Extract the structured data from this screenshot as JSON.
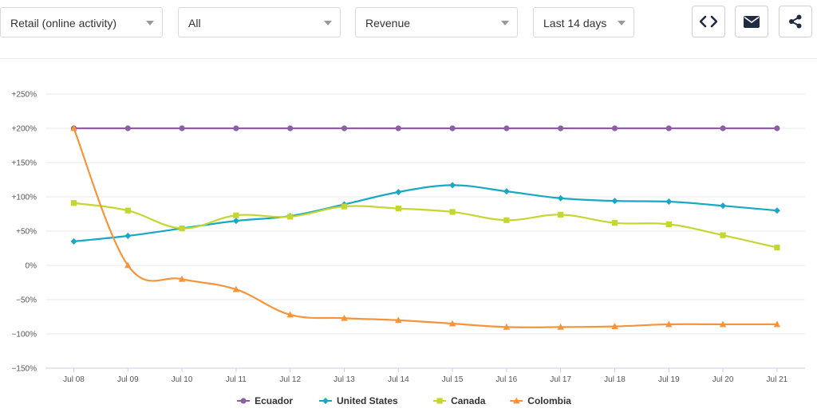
{
  "filters": {
    "segment": {
      "value": "Retail (online activity)"
    },
    "scope": {
      "value": "All"
    },
    "metric": {
      "value": "Revenue"
    },
    "range": {
      "value": "Last 14 days"
    }
  },
  "actions": {
    "embed_icon": "code-icon",
    "email_icon": "envelope-icon",
    "share_icon": "share-icon"
  },
  "chart_data": {
    "type": "line",
    "categories": [
      "Jul 08",
      "Jul 09",
      "Jul 10",
      "Jul 11",
      "Jul 12",
      "Jul 13",
      "Jul 14",
      "Jul 15",
      "Jul 16",
      "Jul 17",
      "Jul 18",
      "Jul 19",
      "Jul 20",
      "Jul 21"
    ],
    "yticks": [
      "+250%",
      "+200%",
      "+150%",
      "+100%",
      "+50%",
      "0%",
      "−50%",
      "−100%",
      "−150%"
    ],
    "ytick_values": [
      250,
      200,
      150,
      100,
      50,
      0,
      -50,
      -100,
      -150
    ],
    "ylim": [
      -150,
      250
    ],
    "grid": true,
    "legend_position": "bottom-center",
    "series": [
      {
        "name": "Ecuador",
        "color": "#8e5ea2",
        "marker": "circle",
        "values": [
          200,
          200,
          200,
          200,
          200,
          200,
          200,
          200,
          200,
          200,
          200,
          200,
          200,
          200
        ]
      },
      {
        "name": "United States",
        "color": "#17a8c4",
        "marker": "diamond",
        "values": [
          35,
          43,
          54,
          65,
          72,
          89,
          107,
          117,
          108,
          98,
          94,
          93,
          87,
          80
        ]
      },
      {
        "name": "Canada",
        "color": "#c5d630",
        "marker": "square",
        "values": [
          91,
          80,
          54,
          73,
          71,
          86,
          83,
          78,
          66,
          74,
          62,
          60,
          44,
          26
        ]
      },
      {
        "name": "Colombia",
        "color": "#f7943a",
        "marker": "triangle",
        "values": [
          200,
          0,
          -20,
          -35,
          -72,
          -77,
          -80,
          -85,
          -90,
          -90,
          -89,
          -86,
          -86,
          -86
        ]
      }
    ]
  }
}
